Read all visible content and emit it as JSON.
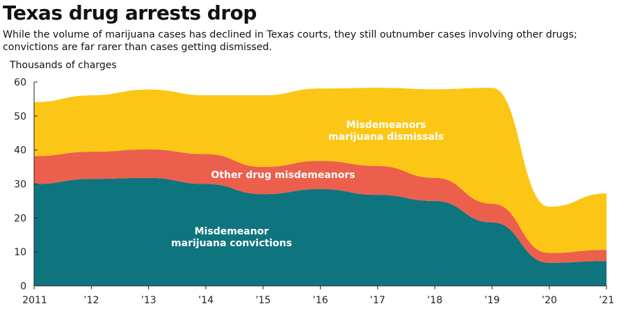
{
  "chart_data": {
    "type": "area",
    "stacked": true,
    "title": "Texas drug arrests drop",
    "subtitle": "While the volume of marijuana cases has declined in Texas courts, they still outnumber cases involving other drugs; convictions are far rarer than cases getting dismissed.",
    "ylabel": "Thousands of charges",
    "xlabel": "",
    "x": [
      2011,
      2012,
      2013,
      2014,
      2015,
      2016,
      2017,
      2018,
      2019,
      2020,
      2021
    ],
    "xtick_labels": [
      "2011",
      "’12",
      "’13",
      "’14",
      "’15",
      "’16",
      "’17",
      "’18",
      "’19",
      "’20",
      "’21"
    ],
    "ylim": [
      0,
      60
    ],
    "yticks": [
      0,
      10,
      20,
      30,
      40,
      50,
      60
    ],
    "ytick_labels": [
      "0",
      "10",
      "20",
      "30",
      "40",
      "50",
      "60"
    ],
    "grid": false,
    "series": [
      {
        "name": "Misdemeanor marijuana convictions",
        "label_lines": [
          "Misdemeanor",
          "marijuana convictions"
        ],
        "color": "#0e757f",
        "values": [
          30.0,
          31.5,
          31.8,
          30.0,
          27.0,
          28.5,
          26.8,
          25.0,
          18.7,
          6.8,
          7.3
        ]
      },
      {
        "name": "Other drug misdemeanors",
        "label_lines": [
          "Other drug misdemeanors"
        ],
        "color": "#ec5f4c",
        "values": [
          8.2,
          8.0,
          8.4,
          8.8,
          8.0,
          8.3,
          8.5,
          6.8,
          5.5,
          2.9,
          3.3
        ]
      },
      {
        "name": "Misdemeanors marijuana dismissals",
        "label_lines": [
          "Misdemeanors",
          "marijuana dismissals"
        ],
        "color": "#fbc615",
        "values": [
          15.9,
          16.6,
          17.6,
          17.3,
          21.1,
          21.3,
          23.0,
          26.1,
          34.1,
          13.6,
          16.6
        ]
      }
    ]
  }
}
